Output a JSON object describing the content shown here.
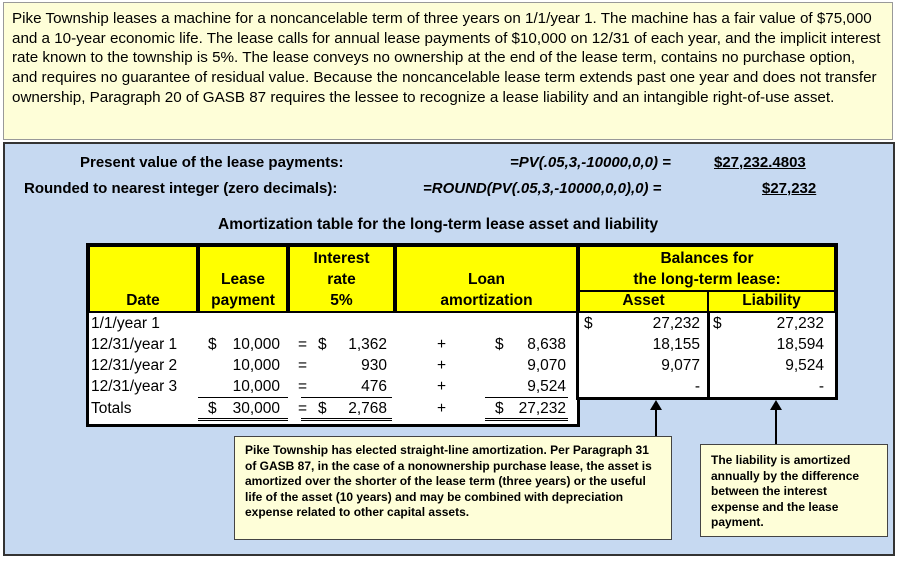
{
  "intro": "Pike Township leases a machine for a noncancelable term of three years on 1/1/year 1. The machine has a fair value of $75,000 and a 10-year economic life. The lease calls for annual lease payments of $10,000  on 12/31 of each year, and the implicit interest rate known to the township is 5%. The lease conveys no ownership at the end of the lease term, contains no purchase option, and requires no guarantee of residual value. Because the noncancelable lease term extends past one year and does not transfer ownership, Paragraph 20 of GASB 87 requires the lessee to recognize a lease liability and an intangible right-of-use asset.",
  "pv": {
    "label": "Present value of the lease payments:",
    "formula": "=PV(.05,3,-10000,0,0)  =",
    "value": "$27,232.4803"
  },
  "rounded": {
    "label": "Rounded to nearest integer (zero decimals):",
    "formula": "=ROUND(PV(.05,3,-10000,0,0),0) =",
    "value": "$27,232"
  },
  "table_title": "Amortization table for the long-term lease asset and liability",
  "headers": {
    "date": "Date",
    "lease1": "Lease",
    "lease2": "payment",
    "int1": "Interest",
    "int2": "rate",
    "int3": "5%",
    "loan1": "Loan",
    "loan2": "amortization",
    "bal1": "Balances for",
    "bal2": "the long-term lease:",
    "asset": "Asset",
    "liability": "Liability"
  },
  "rows": [
    {
      "date": "1/1/year 1",
      "pay_sign": "",
      "pay": "",
      "eq": "",
      "int_sign": "",
      "int": "",
      "plus": "",
      "loan_sign": "",
      "loan": "",
      "asset_sign": "$",
      "asset": "27,232",
      "liab_sign": "$",
      "liab": "27,232"
    },
    {
      "date": "12/31/year 1",
      "pay_sign": "$",
      "pay": "10,000",
      "eq": "=",
      "int_sign": "$",
      "int": "1,362",
      "plus": "+",
      "loan_sign": "$",
      "loan": "8,638",
      "asset_sign": "",
      "asset": "18,155",
      "liab_sign": "",
      "liab": "18,594"
    },
    {
      "date": "12/31/year 2",
      "pay_sign": "",
      "pay": "10,000",
      "eq": "=",
      "int_sign": "",
      "int": "930",
      "plus": "+",
      "loan_sign": "",
      "loan": "9,070",
      "asset_sign": "",
      "asset": "9,077",
      "liab_sign": "",
      "liab": "9,524"
    },
    {
      "date": "12/31/year 3",
      "pay_sign": "",
      "pay": "10,000",
      "eq": "=",
      "int_sign": "",
      "int": "476",
      "plus": "+",
      "loan_sign": "",
      "loan": "9,524",
      "asset_sign": "",
      "asset": "-",
      "liab_sign": "",
      "liab": "-"
    }
  ],
  "totals": {
    "label": "Totals",
    "pay_sign": "$",
    "pay": "30,000",
    "eq": "=",
    "int_sign": "$",
    "int": "2,768",
    "plus": "+",
    "loan_sign": "$",
    "loan": "27,232"
  },
  "note_asset": "Pike Township has elected straight-line amortization. Per Paragraph 31 of GASB 87, in the case of a nonownership purchase lease, the asset is amortized over the shorter of the lease term (three years) or the useful life of the asset (10 years) and may be combined with depreciation expense related to other capital assets.",
  "note_liability": "The liability is amortized annually by the difference between the interest expense and the lease payment."
}
